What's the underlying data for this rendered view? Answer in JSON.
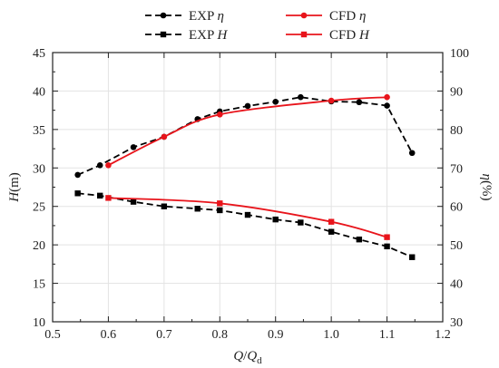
{
  "chart_data": {
    "type": "line",
    "title": "",
    "xlabel": "Q/Qd",
    "ylabel_left": "H(m)",
    "ylabel_right": "η(%)",
    "xlim": [
      0.5,
      1.2
    ],
    "ylim_left": [
      10,
      45
    ],
    "ylim_right": [
      30,
      100
    ],
    "xticks": [
      "0.5",
      "0.6",
      "0.7",
      "0.8",
      "0.9",
      "1.0",
      "1.1",
      "1.2"
    ],
    "yticks_left": [
      "10",
      "15",
      "20",
      "25",
      "30",
      "35",
      "40",
      "45"
    ],
    "yticks_right": [
      "30",
      "40",
      "50",
      "60",
      "70",
      "80",
      "90",
      "100"
    ],
    "grid": true,
    "legend_position": "top",
    "series": [
      {
        "name": "EXP η",
        "axis": "right",
        "color": "#000000",
        "line": "dashed",
        "marker": "circle",
        "x": [
          0.545,
          0.585,
          0.645,
          0.7,
          0.76,
          0.8,
          0.85,
          0.9,
          0.945,
          1.0,
          1.05,
          1.1,
          1.145
        ],
        "y": [
          68.2,
          70.7,
          75.4,
          78.1,
          82.7,
          84.7,
          86.1,
          87.2,
          88.4,
          87.3,
          87.1,
          86.2,
          73.9
        ]
      },
      {
        "name": "CFD η",
        "axis": "right",
        "color": "#e8141b",
        "line": "solid",
        "marker": "circle",
        "x": [
          0.6,
          0.7,
          0.8,
          1.0,
          1.1
        ],
        "y": [
          70.7,
          78.1,
          83.9,
          87.5,
          88.4
        ]
      },
      {
        "name": "EXP H",
        "axis": "left",
        "color": "#000000",
        "line": "dashed",
        "marker": "square",
        "x": [
          0.545,
          0.585,
          0.645,
          0.7,
          0.76,
          0.8,
          0.85,
          0.9,
          0.945,
          1.0,
          1.05,
          1.1,
          1.145
        ],
        "y": [
          26.7,
          26.4,
          25.6,
          25.0,
          24.7,
          24.5,
          23.9,
          23.3,
          22.9,
          21.7,
          20.7,
          19.8,
          18.4
        ]
      },
      {
        "name": "CFD H",
        "axis": "left",
        "color": "#e8141b",
        "line": "solid",
        "marker": "square",
        "x": [
          0.6,
          0.8,
          1.0,
          1.1
        ],
        "y": [
          26.1,
          25.4,
          23.0,
          21.0
        ]
      }
    ]
  }
}
